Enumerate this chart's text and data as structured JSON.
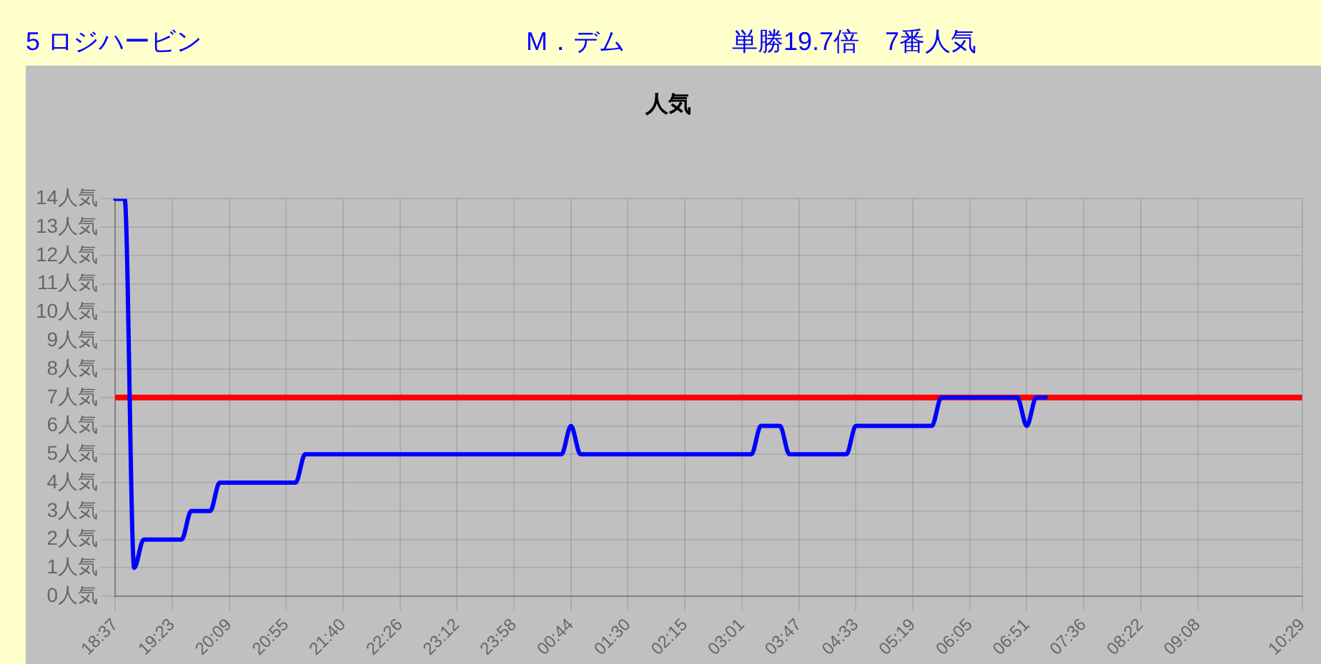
{
  "chart_data": {
    "type": "line",
    "title": "人気",
    "annotations": [
      "5 ロジハービン",
      "M．デム",
      "単勝19.7倍　7番人気"
    ],
    "categories": [
      "18:37",
      null,
      null,
      null,
      null,
      null,
      "19:23",
      null,
      null,
      null,
      null,
      null,
      "20:09",
      null,
      null,
      null,
      null,
      null,
      "20:55",
      null,
      null,
      null,
      null,
      null,
      "21:40",
      null,
      null,
      null,
      null,
      null,
      "22:26",
      null,
      null,
      null,
      null,
      null,
      "23:12",
      null,
      null,
      null,
      null,
      null,
      "23:58",
      null,
      null,
      null,
      null,
      null,
      "00:44",
      null,
      null,
      null,
      null,
      null,
      "01:30",
      null,
      null,
      null,
      null,
      null,
      "02:15",
      null,
      null,
      null,
      null,
      null,
      "03:01",
      null,
      null,
      null,
      null,
      null,
      "03:47",
      null,
      null,
      null,
      null,
      null,
      "04:33",
      null,
      null,
      null,
      null,
      null,
      "05:19",
      null,
      null,
      null,
      null,
      null,
      "06:05",
      null,
      null,
      null,
      null,
      null,
      "06:51",
      null,
      null,
      null,
      null,
      null,
      "07:36",
      null,
      null,
      null,
      null,
      null,
      "08:22",
      null,
      null,
      null,
      null,
      null,
      "09:08",
      null,
      null,
      null,
      null,
      null,
      null,
      null,
      null,
      null,
      null,
      "10:29"
    ],
    "series": [
      {
        "color": "#0000ff",
        "values": [
          14,
          14,
          1,
          2,
          2,
          2,
          2,
          2,
          3,
          3,
          3,
          4,
          4,
          4,
          4,
          4,
          4,
          4,
          4,
          4,
          5,
          5,
          5,
          5,
          5,
          5,
          5,
          5,
          5,
          5,
          5,
          5,
          5,
          5,
          5,
          5,
          5,
          5,
          5,
          5,
          5,
          5,
          5,
          5,
          5,
          5,
          5,
          5,
          6,
          5,
          5,
          5,
          5,
          5,
          5,
          5,
          5,
          5,
          5,
          5,
          5,
          5,
          5,
          5,
          5,
          5,
          5,
          5,
          6,
          6,
          6,
          5,
          5,
          5,
          5,
          5,
          5,
          5,
          6,
          6,
          6,
          6,
          6,
          6,
          6,
          6,
          6,
          7,
          7,
          7,
          7,
          7,
          7,
          7,
          7,
          7,
          6,
          7,
          7,
          null,
          null,
          null,
          null,
          null,
          null,
          null,
          null,
          null,
          null,
          null,
          null,
          null,
          null,
          null,
          null,
          null,
          null,
          null,
          null,
          null,
          null,
          null,
          null,
          null,
          null,
          null
        ]
      }
    ],
    "ylim": [
      0,
      14
    ],
    "yticks": [
      {
        "value": 0,
        "label": "0人気"
      },
      {
        "value": 1,
        "label": "1人気"
      },
      {
        "value": 2,
        "label": "2人気"
      },
      {
        "value": 3,
        "label": "3人気"
      },
      {
        "value": 4,
        "label": "4人気"
      },
      {
        "value": 5,
        "label": "5人気"
      },
      {
        "value": 6,
        "label": "6人気"
      },
      {
        "value": 7,
        "label": "7人気"
      },
      {
        "value": 8,
        "label": "8人気"
      },
      {
        "value": 9,
        "label": "9人気"
      },
      {
        "value": 10,
        "label": "10人気"
      },
      {
        "value": 11,
        "label": "11人気"
      },
      {
        "value": 12,
        "label": "12人気"
      },
      {
        "value": 13,
        "label": "13人気"
      },
      {
        "value": 14,
        "label": "14人気"
      }
    ],
    "ref_lines": [
      {
        "axis": "y",
        "value": 7,
        "color": "#ff0000"
      }
    ],
    "grid": true,
    "legend": false,
    "marker": "none"
  }
}
